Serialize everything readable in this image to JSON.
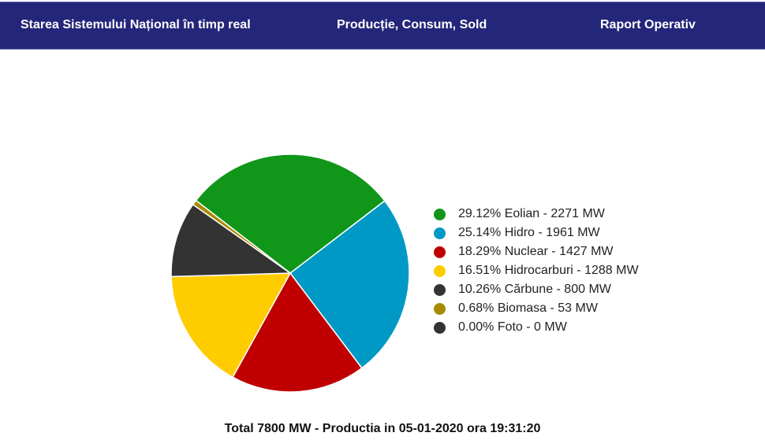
{
  "nav": {
    "items": [
      {
        "label": "Starea Sistemului Național în timp real"
      },
      {
        "label": "Producție, Consum, Sold"
      },
      {
        "label": "Raport Operativ"
      }
    ],
    "background": "#24267a"
  },
  "chart_data": {
    "type": "pie",
    "legend_position": "right",
    "slices": [
      {
        "label": "29.12% Eolian - 2271 MW",
        "name": "Eolian",
        "percent": 29.12,
        "value": 2271,
        "color": "#109618"
      },
      {
        "label": "25.14% Hidro - 1961 MW",
        "name": "Hidro",
        "percent": 25.14,
        "value": 1961,
        "color": "#0099c6"
      },
      {
        "label": "18.29% Nuclear - 1427 MW",
        "name": "Nuclear",
        "percent": 18.29,
        "value": 1427,
        "color": "#c00000"
      },
      {
        "label": "16.51% Hidrocarburi - 1288 MW",
        "name": "Hidrocarburi",
        "percent": 16.51,
        "value": 1288,
        "color": "#ffcc00"
      },
      {
        "label": "10.26% Cărbune - 800 MW",
        "name": "Cărbune",
        "percent": 10.26,
        "value": 800,
        "color": "#333333"
      },
      {
        "label": "0.68% Biomasa - 53 MW",
        "name": "Biomasa",
        "percent": 0.68,
        "value": 53,
        "color": "#a88a00"
      },
      {
        "label": "0.00% Foto - 0 MW",
        "name": "Foto",
        "percent": 0.0,
        "value": 0,
        "color": "#333333"
      }
    ],
    "total_label": "Total 7800 MW - Productia in 05-01-2020 ora 19:31:20"
  }
}
